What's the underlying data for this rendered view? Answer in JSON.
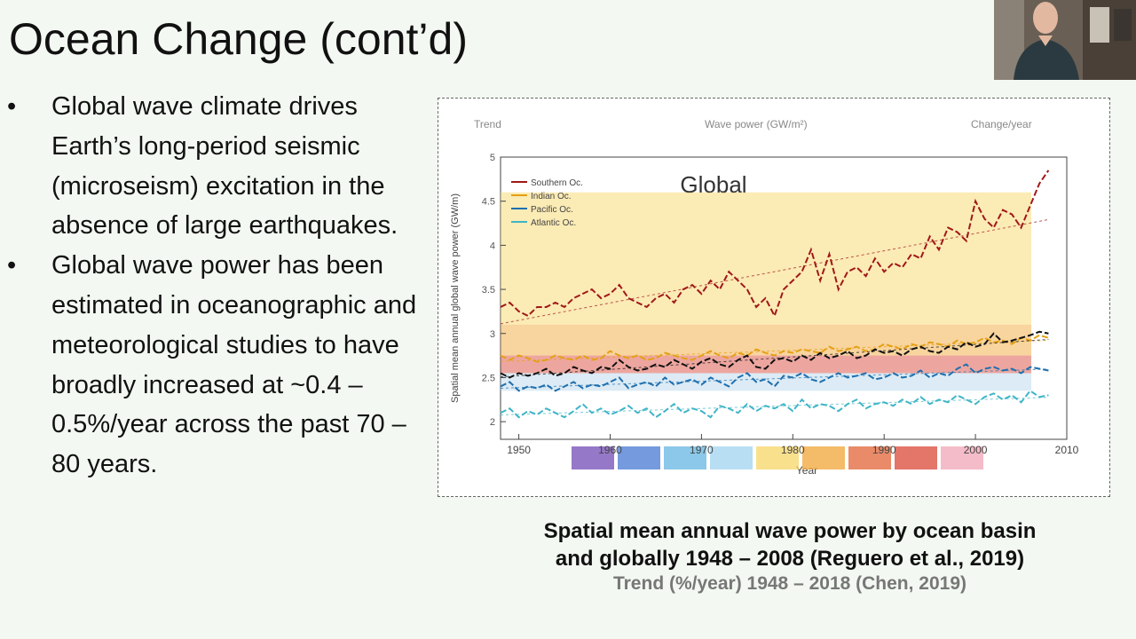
{
  "slide": {
    "title": "Ocean Change (cont’d)",
    "bullets": [
      "Global wave climate drives Earth’s long-period seismic (microseism) excitation in the absence of large earthquakes.",
      "Global wave power has been estimated in oceanographic and meteorological studies to have broadly increased at ~0.4 – 0.5%/year across the past 70 – 80 years."
    ],
    "bullet_symbol": "•",
    "caption_line1": "Spatial mean annual wave power by ocean basin",
    "caption_line2": "and globally 1948 – 2008 (Reguero et al., 2019)",
    "caption_faded": "Trend (%/year) 1948 – 2018 (Chen, 2019)"
  },
  "webcam": {
    "icon": "presenter-video-icon"
  },
  "chart_data": {
    "type": "line",
    "title": "Global",
    "xlabel": "Year",
    "ylabel": "Spatial mean annual global wave power (GW/m)",
    "panel_labels": [
      "Trend",
      "Wave power (GW/m²)",
      "Change/year"
    ],
    "x": [
      1948,
      1949,
      1950,
      1951,
      1952,
      1953,
      1954,
      1955,
      1956,
      1957,
      1958,
      1959,
      1960,
      1961,
      1962,
      1963,
      1964,
      1965,
      1966,
      1967,
      1968,
      1969,
      1970,
      1971,
      1972,
      1973,
      1974,
      1975,
      1976,
      1977,
      1978,
      1979,
      1980,
      1981,
      1982,
      1983,
      1984,
      1985,
      1986,
      1987,
      1988,
      1989,
      1990,
      1991,
      1992,
      1993,
      1994,
      1995,
      1996,
      1997,
      1998,
      1999,
      2000,
      2001,
      2002,
      2003,
      2004,
      2005,
      2006,
      2007,
      2008
    ],
    "series": [
      {
        "name": "Southern Oc.",
        "color": "#a01818",
        "values": [
          3.3,
          3.35,
          3.25,
          3.2,
          3.3,
          3.3,
          3.35,
          3.3,
          3.4,
          3.45,
          3.5,
          3.4,
          3.45,
          3.55,
          3.4,
          3.35,
          3.3,
          3.4,
          3.45,
          3.35,
          3.5,
          3.55,
          3.45,
          3.6,
          3.5,
          3.7,
          3.6,
          3.5,
          3.3,
          3.4,
          3.2,
          3.5,
          3.6,
          3.7,
          3.95,
          3.6,
          3.9,
          3.5,
          3.7,
          3.75,
          3.65,
          3.85,
          3.7,
          3.8,
          3.75,
          3.9,
          3.85,
          4.1,
          3.95,
          4.2,
          4.15,
          4.05,
          4.5,
          4.3,
          4.2,
          4.4,
          4.35,
          4.2,
          4.45,
          4.7,
          4.85
        ]
      },
      {
        "name": "Indian Oc.",
        "color": "#e4a015",
        "values": [
          2.75,
          2.7,
          2.75,
          2.72,
          2.68,
          2.7,
          2.75,
          2.72,
          2.7,
          2.75,
          2.7,
          2.72,
          2.8,
          2.75,
          2.72,
          2.75,
          2.7,
          2.72,
          2.78,
          2.75,
          2.72,
          2.7,
          2.75,
          2.8,
          2.75,
          2.72,
          2.78,
          2.75,
          2.82,
          2.78,
          2.75,
          2.8,
          2.78,
          2.82,
          2.8,
          2.78,
          2.85,
          2.8,
          2.82,
          2.85,
          2.8,
          2.82,
          2.88,
          2.85,
          2.82,
          2.88,
          2.85,
          2.9,
          2.88,
          2.85,
          2.92,
          2.88,
          2.9,
          2.95,
          2.9,
          2.92,
          2.88,
          2.95,
          2.92,
          2.98,
          2.95
        ]
      },
      {
        "name": "Pacific Oc.",
        "color": "#1f6fae",
        "values": [
          2.4,
          2.45,
          2.35,
          2.4,
          2.38,
          2.42,
          2.35,
          2.4,
          2.45,
          2.38,
          2.42,
          2.4,
          2.45,
          2.5,
          2.38,
          2.42,
          2.45,
          2.4,
          2.5,
          2.42,
          2.45,
          2.48,
          2.42,
          2.5,
          2.45,
          2.4,
          2.5,
          2.55,
          2.45,
          2.48,
          2.4,
          2.52,
          2.5,
          2.55,
          2.48,
          2.45,
          2.5,
          2.55,
          2.5,
          2.52,
          2.55,
          2.48,
          2.5,
          2.55,
          2.5,
          2.52,
          2.58,
          2.5,
          2.55,
          2.52,
          2.6,
          2.65,
          2.55,
          2.6,
          2.62,
          2.58,
          2.6,
          2.55,
          2.62,
          2.6,
          2.58
        ]
      },
      {
        "name": "Atlantic Oc.",
        "color": "#3fb5c7",
        "values": [
          2.1,
          2.15,
          2.05,
          2.12,
          2.08,
          2.15,
          2.1,
          2.05,
          2.12,
          2.2,
          2.1,
          2.15,
          2.08,
          2.12,
          2.18,
          2.1,
          2.15,
          2.05,
          2.12,
          2.2,
          2.1,
          2.15,
          2.12,
          2.05,
          2.18,
          2.15,
          2.1,
          2.2,
          2.12,
          2.18,
          2.15,
          2.2,
          2.12,
          2.25,
          2.15,
          2.2,
          2.18,
          2.12,
          2.2,
          2.25,
          2.15,
          2.2,
          2.22,
          2.18,
          2.25,
          2.2,
          2.28,
          2.2,
          2.25,
          2.22,
          2.3,
          2.25,
          2.2,
          2.28,
          2.32,
          2.25,
          2.3,
          2.22,
          2.35,
          2.28,
          2.3
        ]
      },
      {
        "name": "Global",
        "color": "#111111",
        "values": [
          2.55,
          2.5,
          2.55,
          2.52,
          2.55,
          2.6,
          2.52,
          2.55,
          2.62,
          2.58,
          2.55,
          2.62,
          2.6,
          2.7,
          2.62,
          2.58,
          2.6,
          2.65,
          2.62,
          2.7,
          2.65,
          2.6,
          2.68,
          2.72,
          2.65,
          2.62,
          2.7,
          2.75,
          2.62,
          2.6,
          2.7,
          2.72,
          2.68,
          2.75,
          2.7,
          2.78,
          2.72,
          2.75,
          2.8,
          2.72,
          2.75,
          2.82,
          2.78,
          2.8,
          2.75,
          2.82,
          2.85,
          2.8,
          2.78,
          2.85,
          2.82,
          2.9,
          2.85,
          2.88,
          3.0,
          2.9,
          2.92,
          2.95,
          2.98,
          3.02,
          3.0
        ]
      }
    ],
    "xlim": [
      1948,
      2010
    ],
    "ylim": [
      1.8,
      5.0
    ],
    "x_ticks": [
      1950,
      1960,
      1970,
      1980,
      1990,
      2000,
      2010
    ],
    "y_ticks": [
      2,
      2.5,
      3,
      3.5,
      4,
      4.5,
      5
    ],
    "legend_position": "top-left",
    "grid": false
  }
}
